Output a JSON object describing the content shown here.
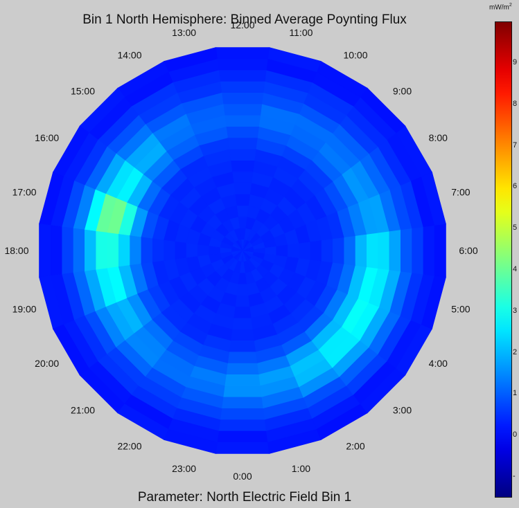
{
  "chart_data": {
    "type": "heatmap",
    "title": "Bin 1 North Hemisphere: Binned Average Poynting Flux",
    "subtitle": "Parameter: North Electric Field Bin 1",
    "projection": "polar",
    "angular_axis": {
      "labels": [
        "12:00",
        "11:00",
        "10:00",
        "9:00",
        "8:00",
        "7:00",
        "6:00",
        "5:00",
        "4:00",
        "3:00",
        "2:00",
        "1:00",
        "0:00",
        "23:00",
        "22:00",
        "21:00",
        "20:00",
        "19:00",
        "18:00",
        "17:00",
        "16:00",
        "15:00",
        "14:00",
        "13:00"
      ],
      "sectors": 24
    },
    "radial_bins": 18,
    "colorbar": {
      "unit": "mW/m",
      "unit_exponent": "2",
      "colormap": "jet",
      "range": [
        -1.5,
        10
      ],
      "tick_labels": [
        "9",
        "8",
        "7",
        "6",
        "5",
        "4",
        "3",
        "2",
        "1",
        "0",
        "-"
      ],
      "tick_values": [
        9,
        8,
        7,
        6,
        5,
        4,
        3,
        2,
        1,
        0,
        -1
      ]
    },
    "approx_values": {
      "description_of_layout": "",
      "by_hour": [
        {
          "mlt": "0:00",
          "peak": 1.6
        },
        {
          "mlt": "1:00",
          "peak": 1.7
        },
        {
          "mlt": "2:00",
          "peak": 2.2
        },
        {
          "mlt": "3:00",
          "peak": 2.7
        },
        {
          "mlt": "4:00",
          "peak": 2.9
        },
        {
          "mlt": "5:00",
          "peak": 2.8
        },
        {
          "mlt": "6:00",
          "peak": 2.6
        },
        {
          "mlt": "7:00",
          "peak": 1.8
        },
        {
          "mlt": "8:00",
          "peak": 1.6
        },
        {
          "mlt": "9:00",
          "peak": 1.3
        },
        {
          "mlt": "10:00",
          "peak": 1.2
        },
        {
          "mlt": "11:00",
          "peak": 1.2
        },
        {
          "mlt": "12:00",
          "peak": 1.0
        },
        {
          "mlt": "13:00",
          "peak": 1.1
        },
        {
          "mlt": "14:00",
          "peak": 1.3
        },
        {
          "mlt": "15:00",
          "peak": 1.9
        },
        {
          "mlt": "16:00",
          "peak": 2.7
        },
        {
          "mlt": "17:00",
          "peak": 4.2
        },
        {
          "mlt": "18:00",
          "peak": 3.2
        },
        {
          "mlt": "19:00",
          "peak": 2.8
        },
        {
          "mlt": "20:00",
          "peak": 2.0
        },
        {
          "mlt": "21:00",
          "peak": 1.5
        },
        {
          "mlt": "22:00",
          "peak": 1.2
        },
        {
          "mlt": "23:00",
          "peak": 1.3
        }
      ]
    }
  }
}
